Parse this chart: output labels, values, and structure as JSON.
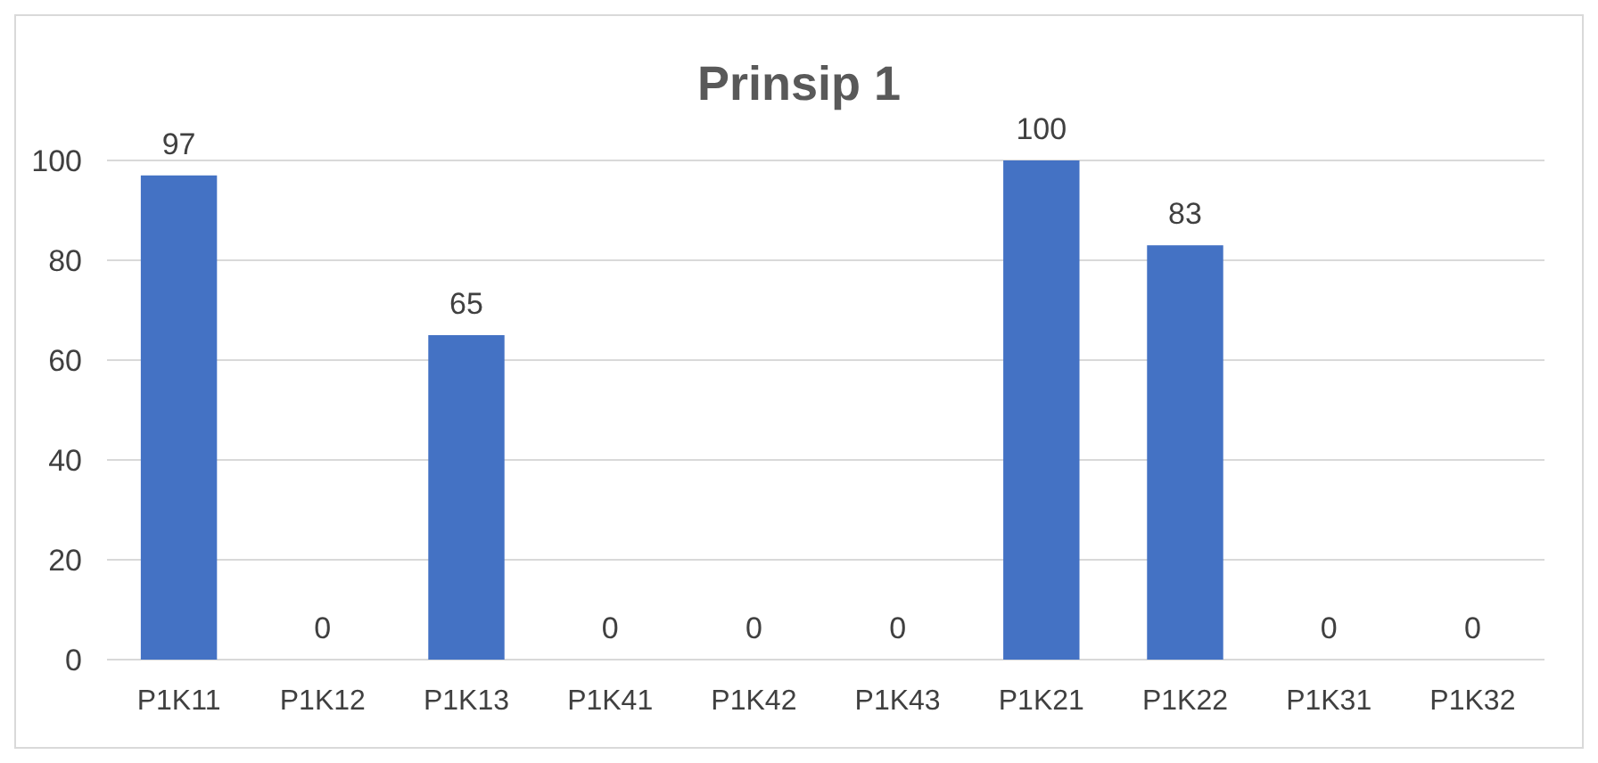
{
  "chart_data": {
    "type": "bar",
    "title": "Prinsip 1",
    "categories": [
      "P1K11",
      "P1K12",
      "P1K13",
      "P1K41",
      "P1K42",
      "P1K43",
      "P1K21",
      "P1K22",
      "P1K31",
      "P1K32"
    ],
    "values": [
      97,
      0,
      65,
      0,
      0,
      0,
      100,
      83,
      0,
      0
    ],
    "color": "#4472c4",
    "ylim": [
      0,
      100
    ],
    "yticks": [
      0,
      20,
      40,
      60,
      80,
      100
    ],
    "grid": "y",
    "data_labels": true
  }
}
